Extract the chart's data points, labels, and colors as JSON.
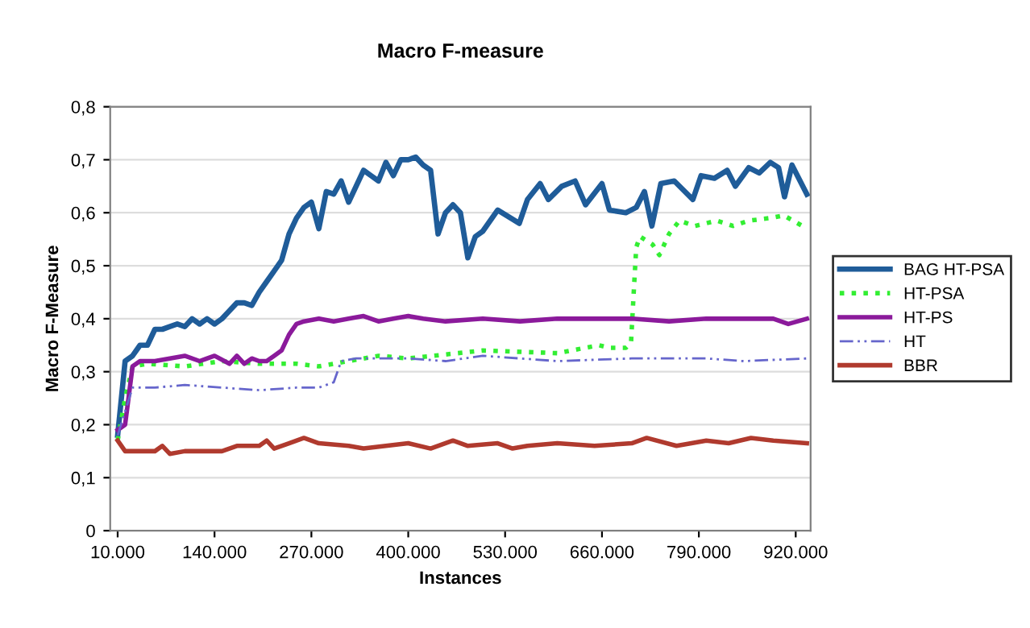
{
  "chart_data": {
    "type": "line",
    "title": "Macro F-measure",
    "xlabel": "Instances",
    "ylabel": "Macro F-Measure",
    "xlim": [
      0,
      940000
    ],
    "ylim": [
      0,
      0.8
    ],
    "xticks": [
      {
        "value": 10000,
        "label": "10.000"
      },
      {
        "value": 140000,
        "label": "140.000"
      },
      {
        "value": 270000,
        "label": "270.000"
      },
      {
        "value": 400000,
        "label": "400.000"
      },
      {
        "value": 530000,
        "label": "530.000"
      },
      {
        "value": 660000,
        "label": "660.000"
      },
      {
        "value": 790000,
        "label": "790.000"
      },
      {
        "value": 920000,
        "label": "920.000"
      }
    ],
    "yticks": [
      0,
      {
        "value": 0.1,
        "label": "0,1"
      },
      {
        "value": 0.2,
        "label": "0,2"
      },
      {
        "value": 0.3,
        "label": "0,3"
      },
      {
        "value": 0.4,
        "label": "0,4"
      },
      {
        "value": 0.5,
        "label": "0,5"
      },
      {
        "value": 0.6,
        "label": "0,6"
      },
      {
        "value": 0.7,
        "label": "0,7"
      },
      {
        "value": 0.8,
        "label": "0,8"
      }
    ],
    "grid": "y",
    "legend": "right",
    "marker": "none",
    "series": [
      {
        "name": "BAG HT-PSA",
        "color": "#1f5c99",
        "line_style": "solid",
        "x": [
          10000,
          20000,
          30000,
          40000,
          50000,
          60000,
          70000,
          80000,
          90000,
          100000,
          110000,
          120000,
          130000,
          140000,
          150000,
          160000,
          170000,
          180000,
          190000,
          200000,
          210000,
          220000,
          230000,
          240000,
          250000,
          260000,
          270000,
          280000,
          290000,
          300000,
          310000,
          320000,
          330000,
          340000,
          350000,
          360000,
          370000,
          380000,
          390000,
          400000,
          410000,
          420000,
          430000,
          440000,
          450000,
          460000,
          470000,
          480000,
          490000,
          500000,
          520000,
          549000,
          560000,
          577000,
          588000,
          606000,
          624000,
          638000,
          660000,
          670000,
          692000,
          706000,
          717000,
          727000,
          739000,
          757000,
          782000,
          793000,
          811000,
          828000,
          839000,
          857000,
          871000,
          886000,
          897000,
          905000,
          915000,
          935000
        ],
        "values": [
          0.18,
          0.32,
          0.33,
          0.35,
          0.35,
          0.38,
          0.38,
          0.385,
          0.39,
          0.385,
          0.4,
          0.39,
          0.4,
          0.39,
          0.4,
          0.415,
          0.43,
          0.43,
          0.425,
          0.45,
          0.47,
          0.49,
          0.51,
          0.56,
          0.59,
          0.61,
          0.62,
          0.57,
          0.64,
          0.635,
          0.66,
          0.62,
          0.65,
          0.68,
          0.67,
          0.66,
          0.695,
          0.67,
          0.7,
          0.7,
          0.705,
          0.69,
          0.68,
          0.56,
          0.6,
          0.615,
          0.6,
          0.515,
          0.555,
          0.565,
          0.605,
          0.58,
          0.625,
          0.655,
          0.625,
          0.65,
          0.66,
          0.615,
          0.655,
          0.605,
          0.6,
          0.61,
          0.64,
          0.575,
          0.655,
          0.66,
          0.625,
          0.67,
          0.665,
          0.68,
          0.65,
          0.685,
          0.675,
          0.695,
          0.685,
          0.63,
          0.69,
          0.635
        ]
      },
      {
        "name": "HT-PSA",
        "color": "#33ee33",
        "line_style": "dotted",
        "x": [
          10000,
          20000,
          30000,
          50000,
          100000,
          150000,
          200000,
          250000,
          280000,
          320000,
          360000,
          400000,
          500000,
          600000,
          656000,
          670000,
          692000,
          699000,
          703000,
          706000,
          711000,
          728000,
          737000,
          750000,
          764000,
          785000,
          814000,
          836000,
          857000,
          886000,
          904000,
          929000
        ],
        "values": [
          0.17,
          0.25,
          0.31,
          0.315,
          0.31,
          0.32,
          0.315,
          0.315,
          0.31,
          0.32,
          0.33,
          0.325,
          0.34,
          0.335,
          0.35,
          0.345,
          0.345,
          0.355,
          0.46,
          0.535,
          0.555,
          0.54,
          0.52,
          0.56,
          0.585,
          0.575,
          0.585,
          0.575,
          0.585,
          0.59,
          0.595,
          0.575
        ]
      },
      {
        "name": "HT-PS",
        "color": "#8b1a9b",
        "line_style": "solid",
        "x": [
          10000,
          20000,
          30000,
          40000,
          60000,
          80000,
          100000,
          120000,
          140000,
          160000,
          170000,
          180000,
          190000,
          200000,
          210000,
          220000,
          230000,
          240000,
          250000,
          260000,
          280000,
          300000,
          320000,
          340000,
          360000,
          380000,
          400000,
          420000,
          450000,
          500000,
          550000,
          600000,
          650000,
          700000,
          750000,
          800000,
          850000,
          890000,
          910000,
          935000
        ],
        "values": [
          0.19,
          0.2,
          0.31,
          0.32,
          0.32,
          0.325,
          0.33,
          0.32,
          0.33,
          0.315,
          0.33,
          0.315,
          0.325,
          0.32,
          0.32,
          0.33,
          0.34,
          0.37,
          0.39,
          0.395,
          0.4,
          0.395,
          0.4,
          0.405,
          0.395,
          0.4,
          0.405,
          0.4,
          0.395,
          0.4,
          0.395,
          0.4,
          0.4,
          0.4,
          0.395,
          0.4,
          0.4,
          0.4,
          0.39,
          0.4
        ]
      },
      {
        "name": "HT",
        "color": "#6666cc",
        "line_style": "dashdot",
        "x": [
          10000,
          30000,
          60000,
          100000,
          150000,
          200000,
          250000,
          280000,
          300000,
          310000,
          330000,
          400000,
          450000,
          500000,
          600000,
          700000,
          800000,
          850000,
          935000
        ],
        "values": [
          0.18,
          0.27,
          0.27,
          0.275,
          0.27,
          0.265,
          0.27,
          0.27,
          0.28,
          0.32,
          0.325,
          0.325,
          0.32,
          0.33,
          0.32,
          0.325,
          0.325,
          0.32,
          0.325
        ]
      },
      {
        "name": "BBR",
        "color": "#b03a2e",
        "line_style": "solid",
        "x": [
          10000,
          20000,
          60000,
          70000,
          80000,
          100000,
          150000,
          170000,
          200000,
          210000,
          220000,
          240000,
          260000,
          280000,
          320000,
          340000,
          400000,
          430000,
          460000,
          480000,
          520000,
          540000,
          560000,
          600000,
          650000,
          700000,
          720000,
          760000,
          800000,
          830000,
          860000,
          890000,
          935000
        ],
        "values": [
          0.17,
          0.15,
          0.15,
          0.16,
          0.145,
          0.15,
          0.15,
          0.16,
          0.16,
          0.17,
          0.155,
          0.165,
          0.175,
          0.165,
          0.16,
          0.155,
          0.165,
          0.155,
          0.17,
          0.16,
          0.165,
          0.155,
          0.16,
          0.165,
          0.16,
          0.165,
          0.175,
          0.16,
          0.17,
          0.165,
          0.175,
          0.17,
          0.165
        ]
      }
    ]
  }
}
